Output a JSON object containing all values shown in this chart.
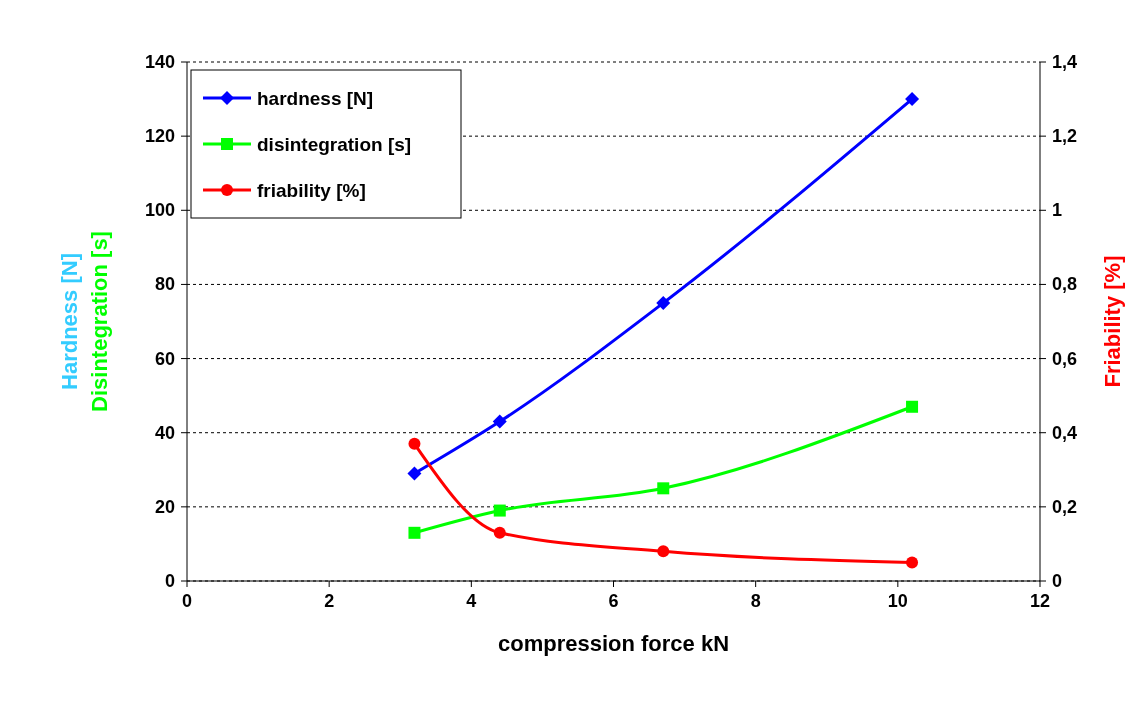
{
  "chart_data": {
    "type": "line",
    "xlabel": "compression force kN",
    "ylabel": "Hardness [N]\nDisintegration [s]",
    "y2label": "Friability [%]",
    "x": [
      3.2,
      4.4,
      6.7,
      10.2
    ],
    "series": [
      {
        "name": "hardness [N]",
        "color": "#0000ff",
        "marker": "diamond",
        "values": [
          29,
          43,
          75,
          130
        ]
      },
      {
        "name": "disintegration [s]",
        "color": "#00ff00",
        "marker": "square",
        "values": [
          13,
          19,
          25,
          47
        ]
      },
      {
        "name": "friability [%]",
        "color": "#ff0000",
        "marker": "circle",
        "axis": "y2",
        "values": [
          0.37,
          0.13,
          0.08,
          0.05
        ]
      }
    ],
    "xlim": [
      0,
      12
    ],
    "xticks": [
      0,
      2,
      4,
      6,
      8,
      10,
      12
    ],
    "ylim": [
      0,
      140
    ],
    "yticks": [
      0,
      20,
      40,
      60,
      80,
      100,
      120,
      140
    ],
    "y2lim": [
      0,
      1.4
    ],
    "y2ticks": [
      0,
      {
        "value": 0.2,
        "label": "0,2"
      },
      {
        "value": 0.4,
        "label": "0,4"
      },
      {
        "value": 0.6,
        "label": "0,6"
      },
      {
        "value": 0.8,
        "label": "0,8"
      },
      1,
      {
        "value": 1.2,
        "label": "1,2"
      },
      {
        "value": 1.4,
        "label": "1,4"
      }
    ],
    "grid": "y",
    "legend": "top left",
    "line_style": "solid"
  }
}
